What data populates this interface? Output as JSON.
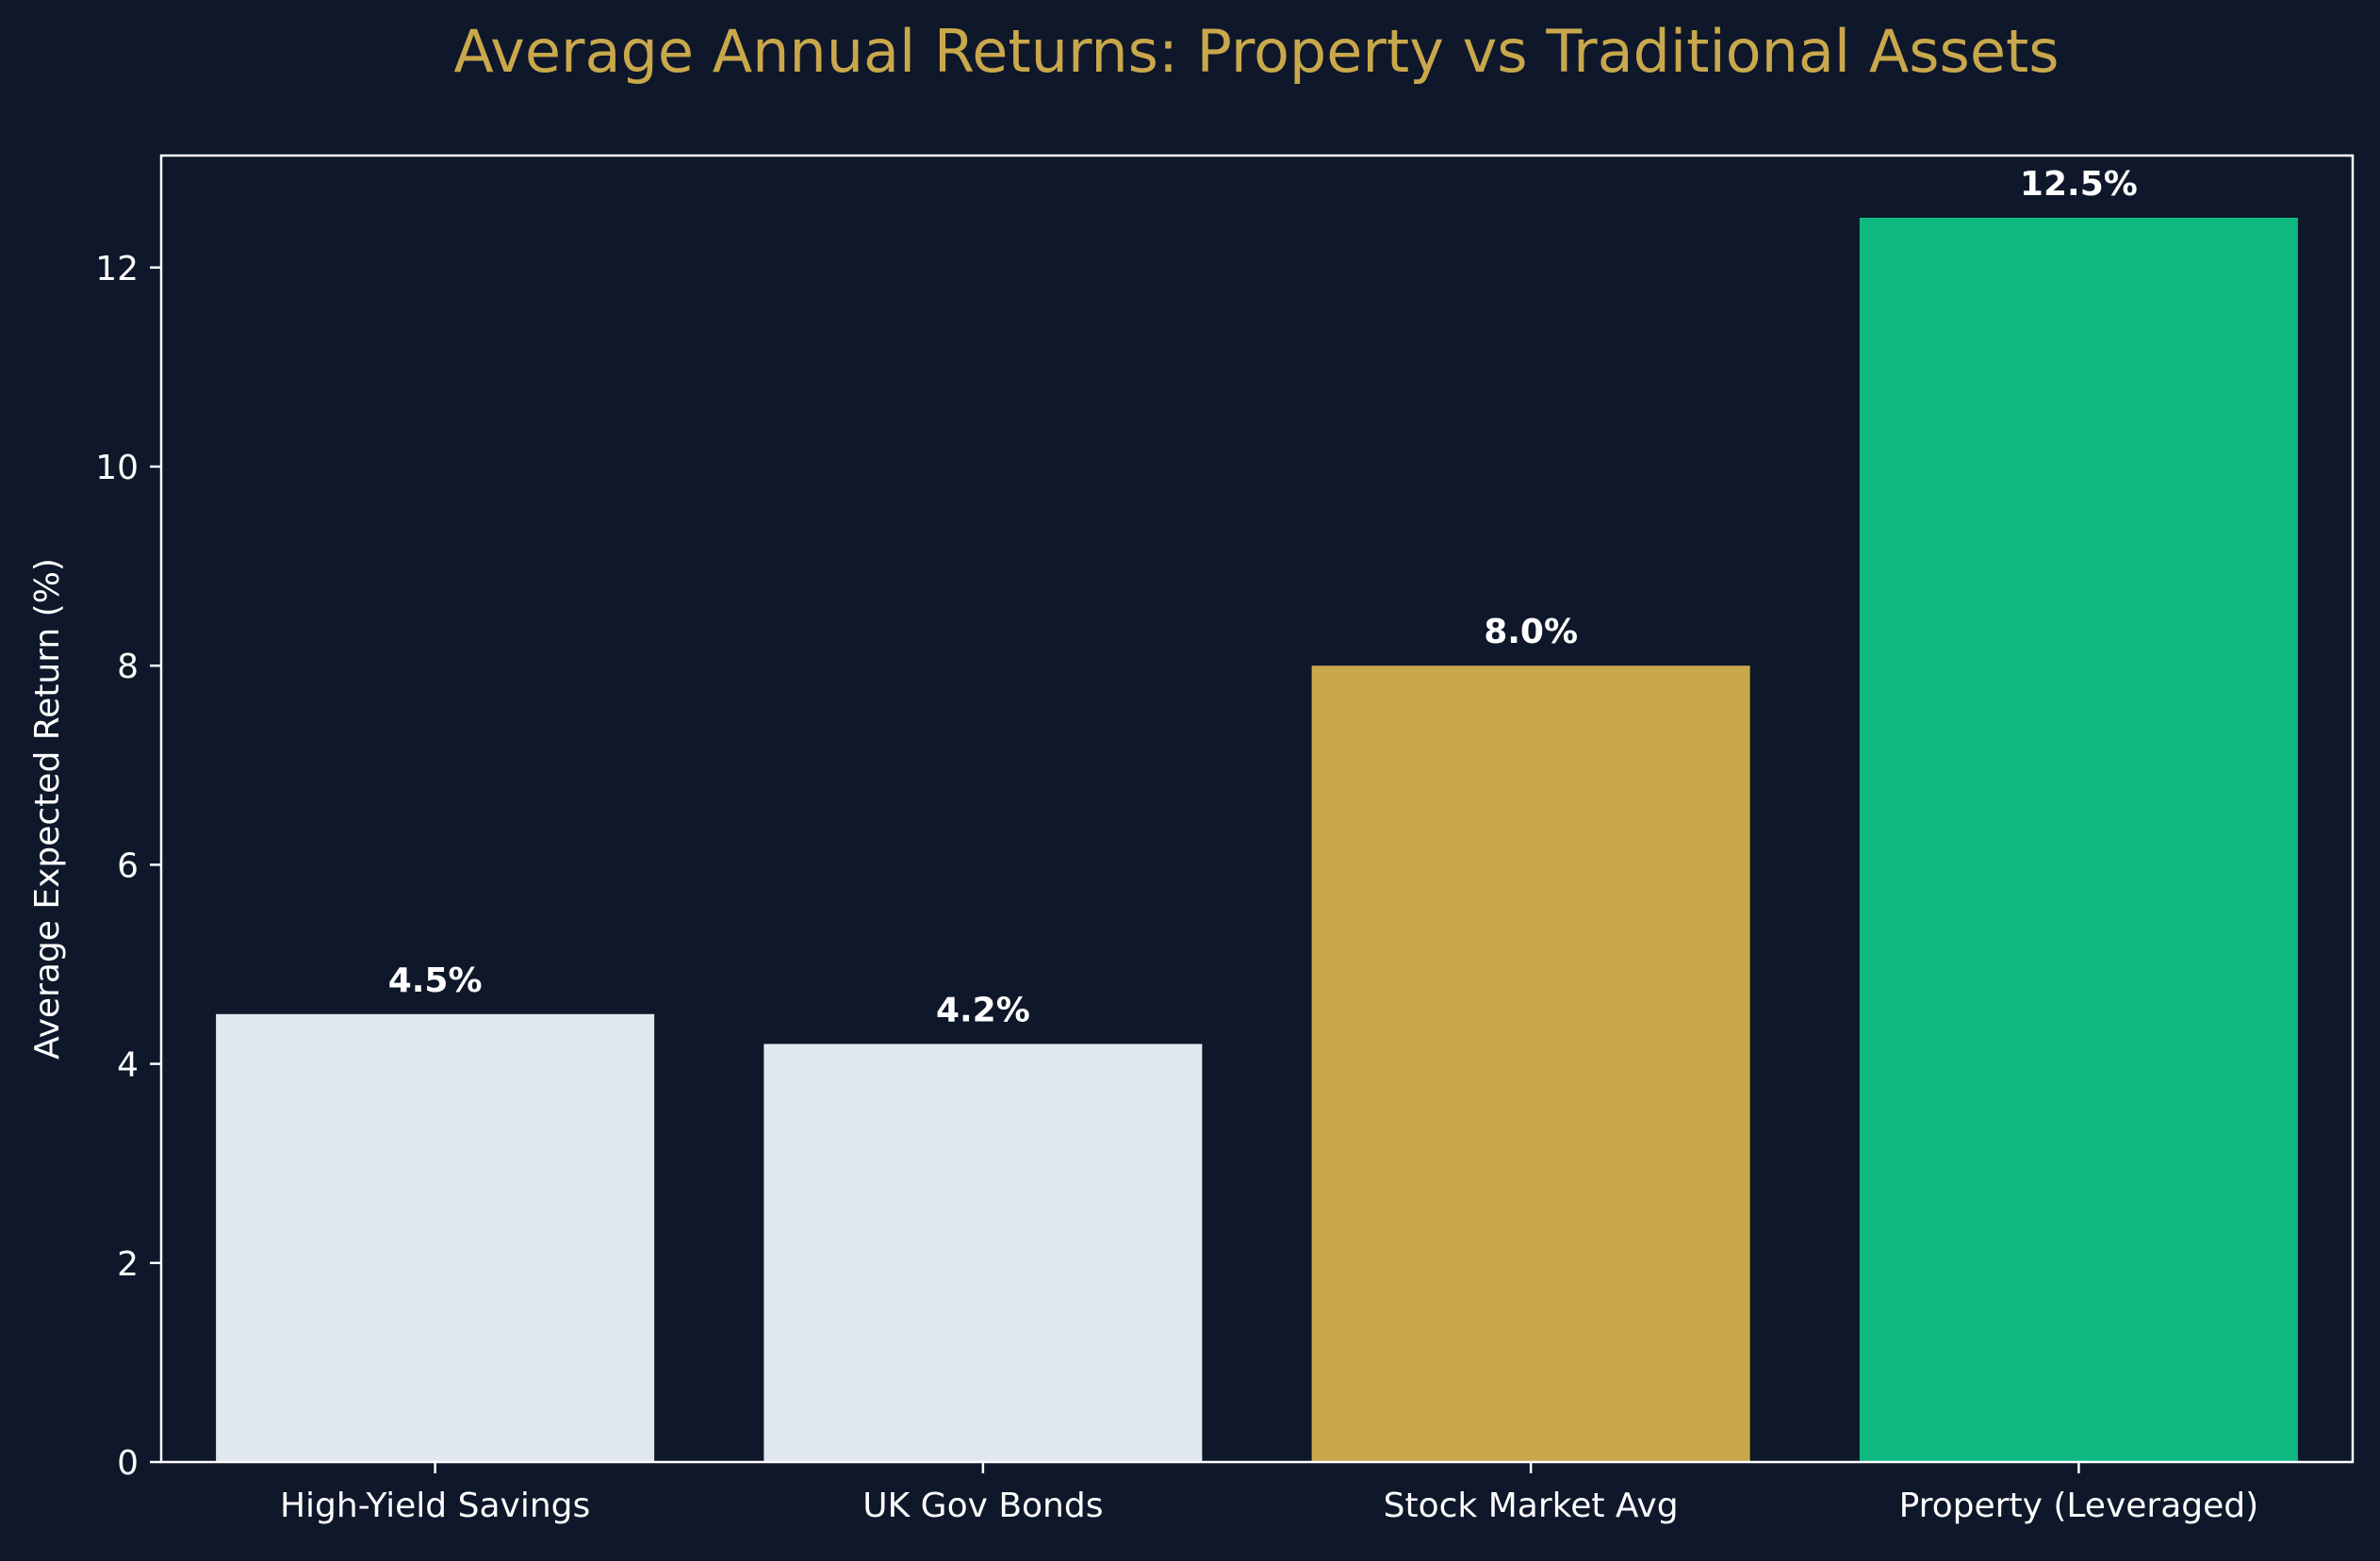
{
  "chart_data": {
    "type": "bar",
    "title": "Average Annual Returns: Property vs Traditional Assets",
    "xlabel": "",
    "ylabel": "Average Expected Return (%)",
    "categories": [
      "High-Yield Savings",
      "UK Gov Bonds",
      "Stock Market Avg",
      "Property (Leveraged)"
    ],
    "values": [
      4.5,
      4.2,
      8.0,
      12.5
    ],
    "value_labels": [
      "4.5%",
      "4.2%",
      "8.0%",
      "12.5%"
    ],
    "bar_colors": [
      "#e2e8f0",
      "#e2e8f0",
      "#c9a84c",
      "#10b981"
    ],
    "ylim": [
      0,
      13.125
    ],
    "yticks": [
      0,
      2,
      4,
      6,
      8,
      10,
      12
    ],
    "grid": false,
    "legend": "none"
  },
  "colors": {
    "background": "#0f172a",
    "title": "#c9a84c",
    "axis": "#ffffff",
    "text": "#ffffff"
  }
}
